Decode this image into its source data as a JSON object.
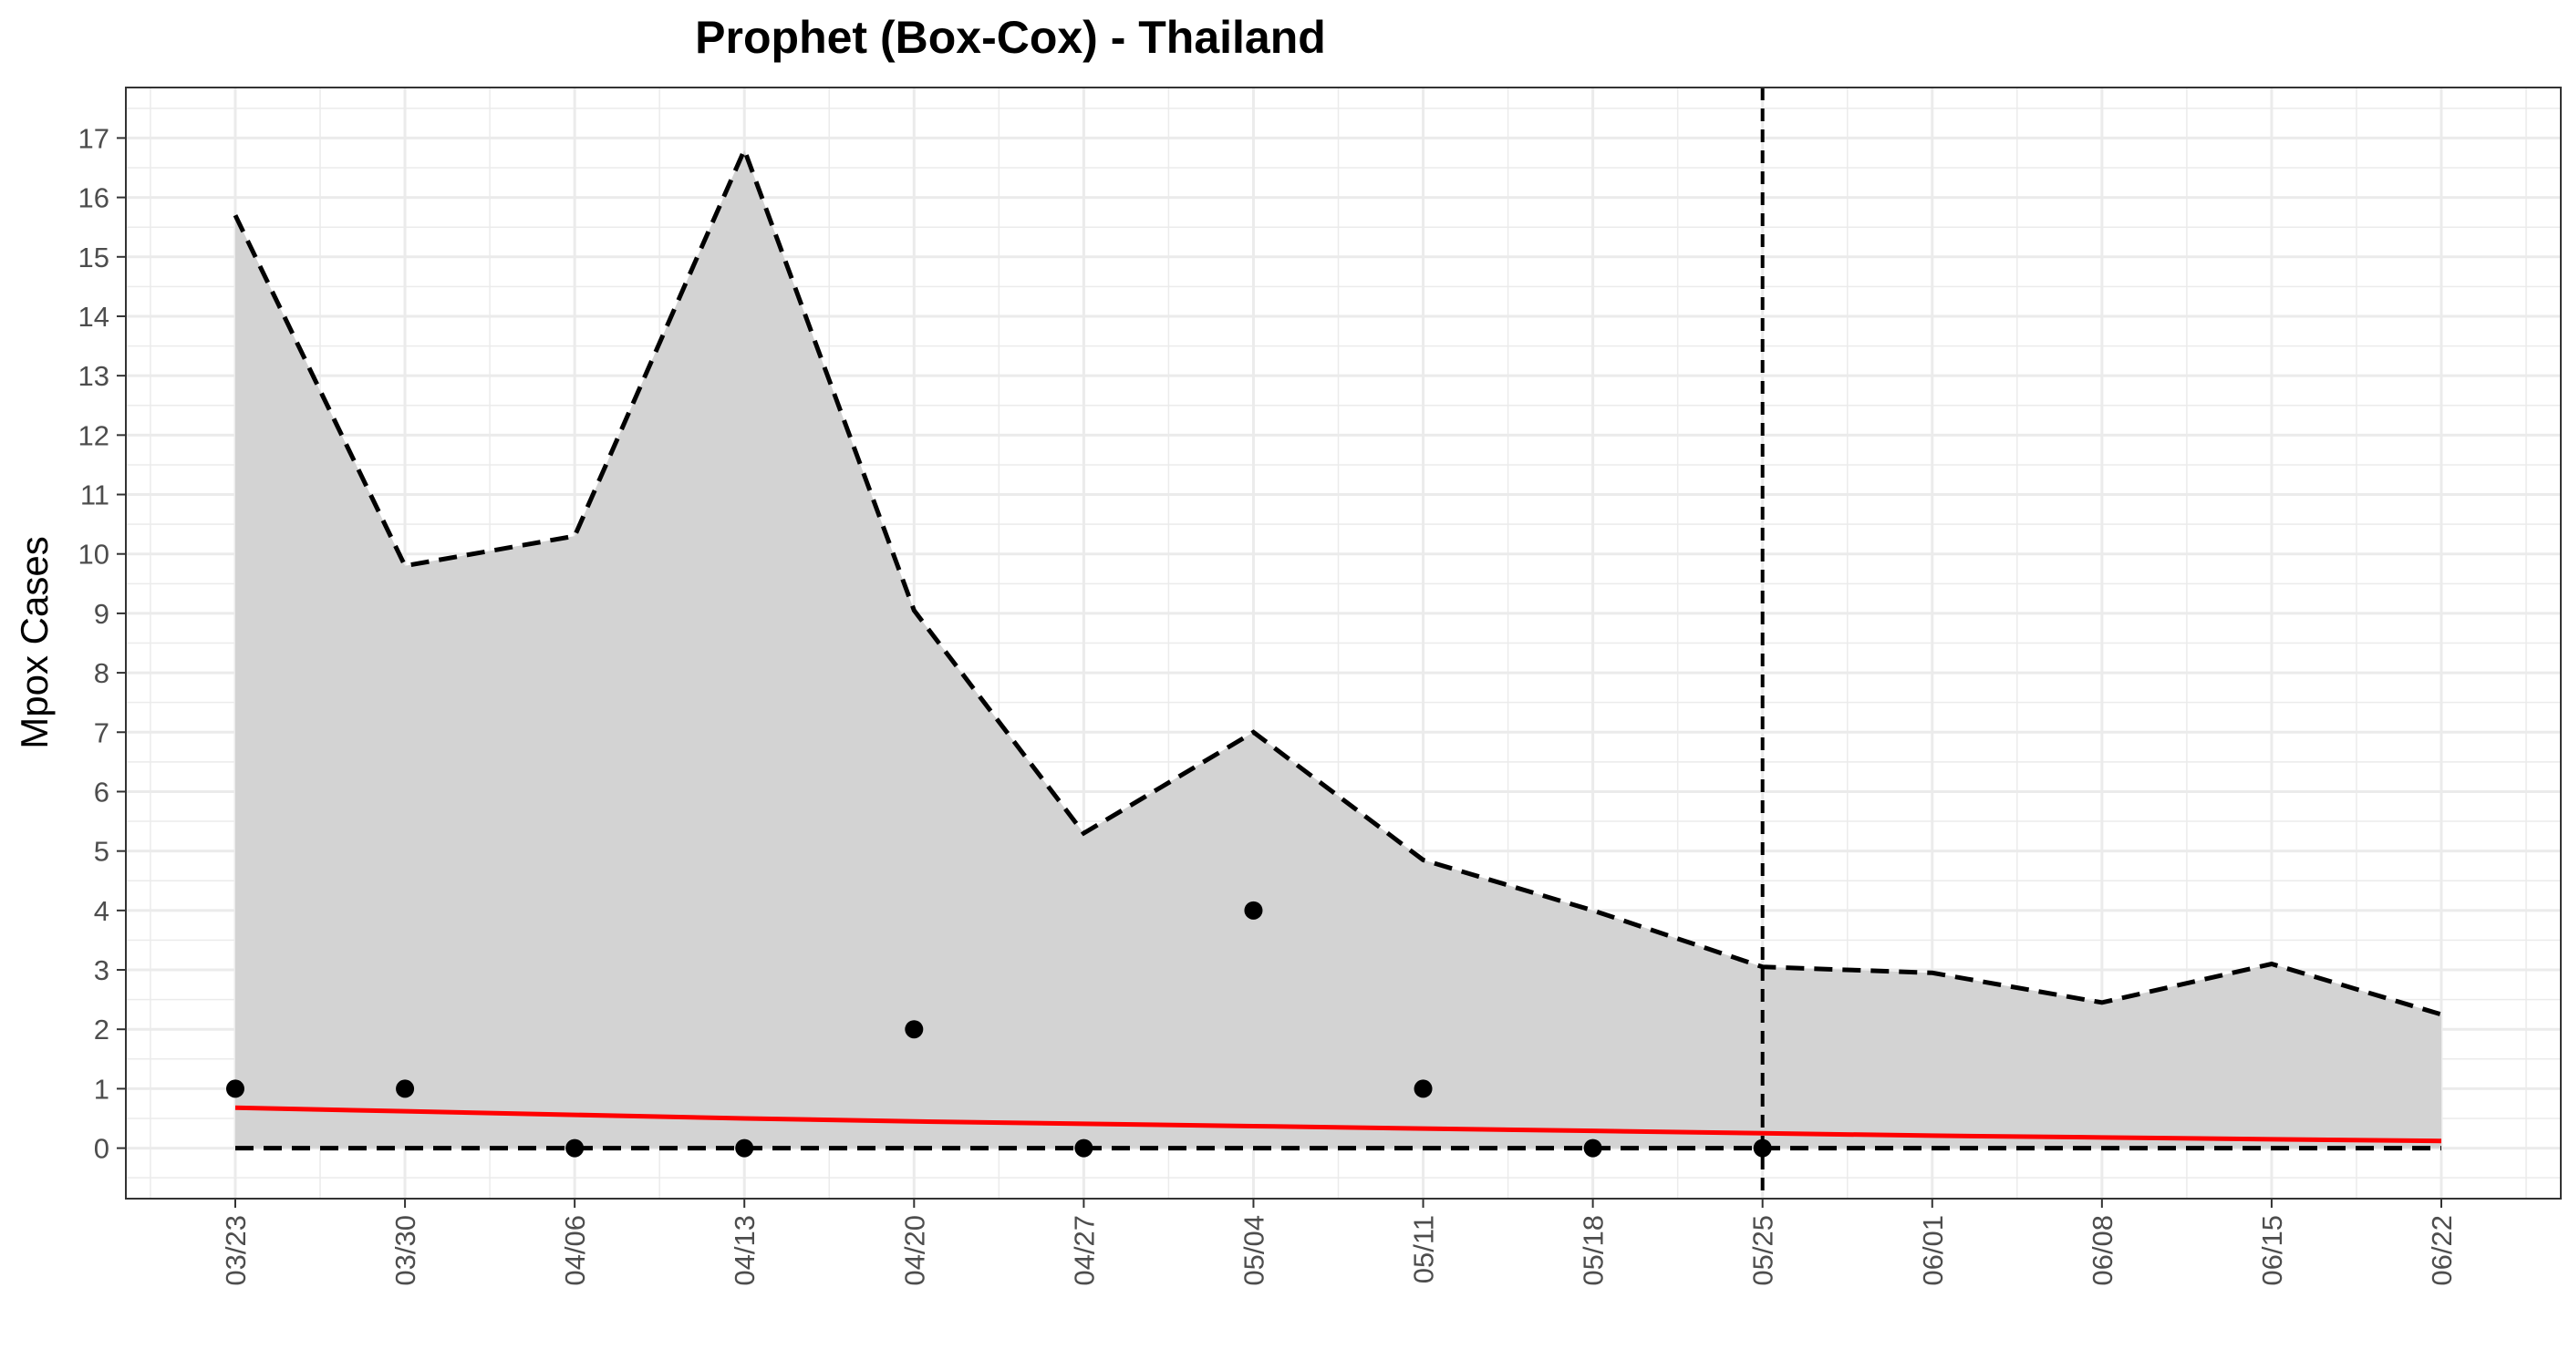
{
  "chart_data": {
    "type": "line",
    "title": "Prophet (Box-Cox) - Thailand",
    "xlabel": "",
    "ylabel": "Mpox Cases",
    "categories": [
      "03/23",
      "03/30",
      "04/06",
      "04/13",
      "04/20",
      "04/27",
      "05/04",
      "05/11",
      "05/18",
      "05/25",
      "06/01",
      "06/08",
      "06/15",
      "06/22"
    ],
    "y_ticks": [
      "0",
      "1",
      "2",
      "3",
      "4",
      "5",
      "6",
      "7",
      "8",
      "9",
      "10",
      "11",
      "12",
      "13",
      "14",
      "15",
      "16",
      "17"
    ],
    "ylim": [
      -0.85,
      17.85
    ],
    "forecast_start": "05/25",
    "series": [
      {
        "values": [
          0.68,
          0.62,
          0.56,
          0.5,
          0.45,
          0.41,
          0.37,
          0.33,
          0.29,
          0.25,
          0.21,
          0.18,
          0.15,
          0.12
        ],
        "style": "solid",
        "color": "#ff0000"
      },
      {
        "values": [
          15.7,
          9.8,
          10.3,
          16.8,
          9.05,
          5.3,
          7.0,
          4.85,
          4.0,
          3.05,
          2.95,
          2.45,
          3.1,
          2.25
        ],
        "style": "dashed",
        "color": "#000000"
      },
      {
        "values": [
          0,
          0,
          0,
          0,
          0,
          0,
          0,
          0,
          0,
          0,
          0,
          0,
          0,
          0
        ],
        "style": "dashed",
        "color": "#000000"
      },
      {
        "values": [
          1,
          1,
          0,
          0,
          2,
          0,
          4,
          1,
          0,
          0,
          null,
          null,
          null,
          null
        ],
        "style": "points",
        "color": "#000000"
      }
    ],
    "band_color": "#d3d3d3",
    "grid": true,
    "legend": "none"
  }
}
